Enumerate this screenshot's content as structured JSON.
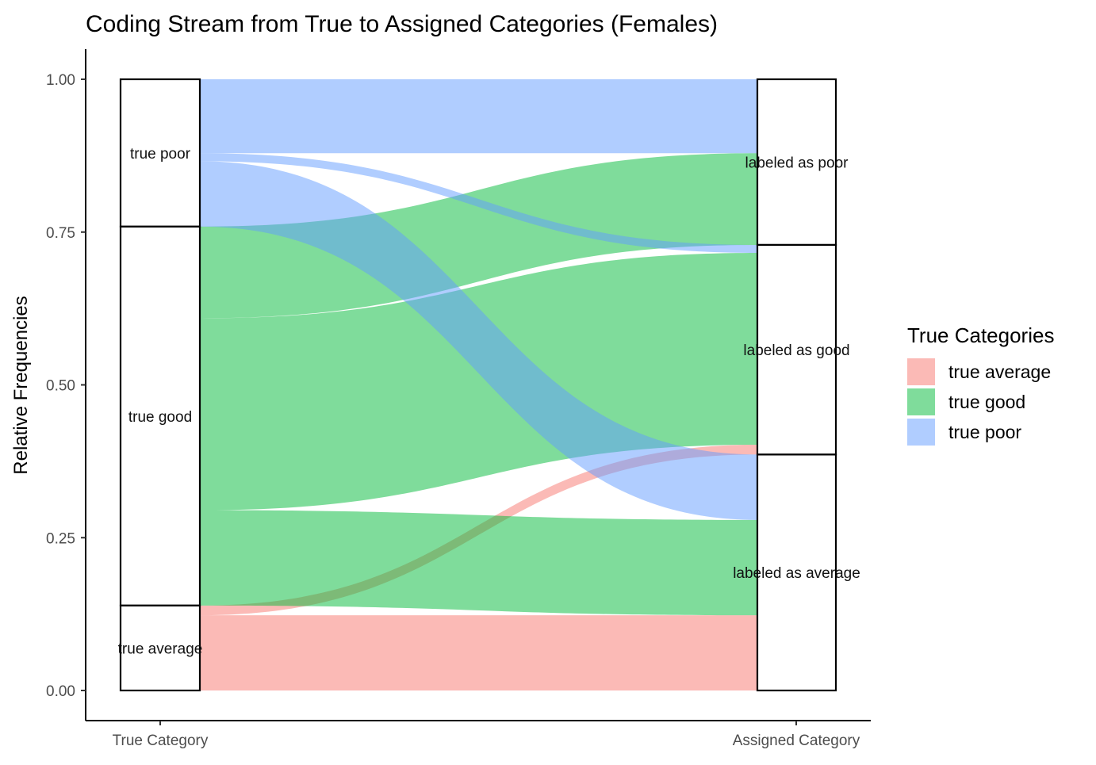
{
  "chart_data": {
    "type": "alluvial",
    "title": "Coding Stream from True to Assigned Categories (Females)",
    "xlabel": "",
    "ylabel": "Relative Frequencies",
    "ylim": [
      0,
      1
    ],
    "y_ticks": [
      "0.00",
      "0.25",
      "0.50",
      "0.75",
      "1.00"
    ],
    "axes": [
      "True Category",
      "Assigned Category"
    ],
    "strata": {
      "left": [
        {
          "label": "true average",
          "from": 0.0,
          "to": 0.139
        },
        {
          "label": "true good",
          "from": 0.139,
          "to": 0.759
        },
        {
          "label": "true poor",
          "from": 0.759,
          "to": 1.0
        }
      ],
      "right": [
        {
          "label": "labeled as average",
          "from": 0.0,
          "to": 0.386
        },
        {
          "label": "labeled as good",
          "from": 0.386,
          "to": 0.729
        },
        {
          "label": "labeled as poor",
          "from": 0.729,
          "to": 1.0
        }
      ]
    },
    "flows": [
      {
        "series": "true average",
        "assigned": "labeled as average",
        "left": [
          0.0,
          0.123
        ],
        "right": [
          0.0,
          0.123
        ]
      },
      {
        "series": "true average",
        "assigned": "labeled as good",
        "left": [
          0.123,
          0.139
        ],
        "right": [
          0.386,
          0.402
        ]
      },
      {
        "series": "true good",
        "assigned": "labeled as average",
        "left": [
          0.139,
          0.295
        ],
        "right": [
          0.123,
          0.279
        ]
      },
      {
        "series": "true good",
        "assigned": "labeled as good",
        "left": [
          0.295,
          0.609
        ],
        "right": [
          0.402,
          0.716
        ]
      },
      {
        "series": "true good",
        "assigned": "labeled as poor",
        "left": [
          0.609,
          0.759
        ],
        "right": [
          0.729,
          0.879
        ]
      },
      {
        "series": "true poor",
        "assigned": "labeled as average",
        "left": [
          0.759,
          0.866
        ],
        "right": [
          0.279,
          0.386
        ]
      },
      {
        "series": "true poor",
        "assigned": "labeled as good",
        "left": [
          0.866,
          0.879
        ],
        "right": [
          0.716,
          0.729
        ]
      },
      {
        "series": "true poor",
        "assigned": "labeled as poor",
        "left": [
          0.879,
          1.0
        ],
        "right": [
          0.879,
          1.0
        ]
      }
    ],
    "legend": {
      "title": "True Categories",
      "placement": "right",
      "items": [
        {
          "label": "true average",
          "color": "#F8766D"
        },
        {
          "label": "true good",
          "color": "#00BA38"
        },
        {
          "label": "true poor",
          "color": "#619CFF"
        }
      ]
    },
    "colors": {
      "true average": "#F8766D",
      "true good": "#00BA38",
      "true poor": "#619CFF"
    },
    "flow_opacity": 0.5,
    "grid": false
  }
}
